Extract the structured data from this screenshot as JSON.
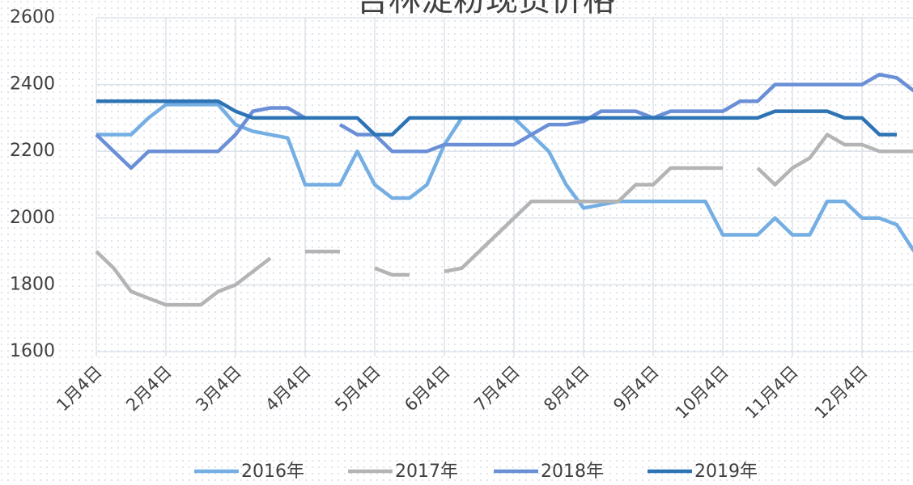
{
  "chart_data": {
    "type": "line",
    "title": "吉林淀粉现货价格",
    "categories": [
      "1月4日",
      null,
      null,
      null,
      "2月4日",
      null,
      null,
      null,
      "3月4日",
      null,
      null,
      null,
      "4月4日",
      null,
      null,
      null,
      "5月4日",
      null,
      null,
      null,
      "6月4日",
      null,
      null,
      null,
      "7月4日",
      null,
      null,
      null,
      "8月4日",
      null,
      null,
      null,
      "9月4日",
      null,
      null,
      null,
      "10月4日",
      null,
      null,
      null,
      "11月4日",
      null,
      null,
      null,
      "12月4日",
      null,
      null,
      null
    ],
    "series": [
      {
        "name": "2016年",
        "color": "#74aee3",
        "values": [
          2250,
          2250,
          2250,
          2300,
          2340,
          2340,
          2340,
          2340,
          2280,
          2260,
          2250,
          2240,
          2100,
          2100,
          2100,
          2200,
          2100,
          2060,
          2060,
          2100,
          2220,
          2300,
          2300,
          2300,
          2300,
          2250,
          2200,
          2100,
          2030,
          2040,
          2050,
          2050,
          2050,
          2050,
          2050,
          2050,
          1950,
          1950,
          1950,
          2000,
          1950,
          1950,
          2050,
          2050,
          2000,
          2000,
          1980,
          1900
        ]
      },
      {
        "name": "2017年",
        "color": "#b4b4b4",
        "values": [
          1900,
          1850,
          1780,
          1760,
          1740,
          1740,
          1740,
          1780,
          1800,
          1840,
          1880,
          null,
          1900,
          1900,
          1900,
          null,
          1850,
          1830,
          1830,
          null,
          1840,
          1850,
          1900,
          1950,
          2000,
          2050,
          2050,
          2050,
          2050,
          2050,
          2050,
          2100,
          2100,
          2150,
          2150,
          2150,
          2150,
          null,
          2150,
          2100,
          2150,
          2180,
          2250,
          2220,
          2220,
          2200,
          2200,
          2200
        ]
      },
      {
        "name": "2018年",
        "color": "#6a8fd6",
        "values": [
          2250,
          2200,
          2150,
          2200,
          2200,
          2200,
          2200,
          2200,
          2250,
          2320,
          2330,
          2330,
          2300,
          null,
          2280,
          2250,
          2250,
          2200,
          2200,
          2200,
          2220,
          2220,
          2220,
          2220,
          2220,
          2250,
          2280,
          2280,
          2290,
          2320,
          2320,
          2320,
          2300,
          2320,
          2320,
          2320,
          2320,
          2350,
          2350,
          2400,
          2400,
          2400,
          2400,
          2400,
          2400,
          2430,
          2420,
          2380
        ]
      },
      {
        "name": "2019年",
        "color": "#2e74b5",
        "values": [
          2350,
          2350,
          2350,
          2350,
          2350,
          2350,
          2350,
          2350,
          2320,
          2300,
          2300,
          2300,
          2300,
          2300,
          2300,
          2300,
          2250,
          2250,
          2300,
          2300,
          2300,
          2300,
          2300,
          2300,
          2300,
          2300,
          2300,
          2300,
          2300,
          2300,
          2300,
          2300,
          2300,
          2300,
          2300,
          2300,
          2300,
          2300,
          2300,
          2320,
          2320,
          2320,
          2320,
          2300,
          2300,
          2250,
          2250,
          null
        ]
      }
    ],
    "ylim": [
      1600,
      2600
    ],
    "yticks": [
      1600,
      1800,
      2000,
      2200,
      2400,
      2600
    ],
    "grid": true,
    "legend": "bottom"
  }
}
